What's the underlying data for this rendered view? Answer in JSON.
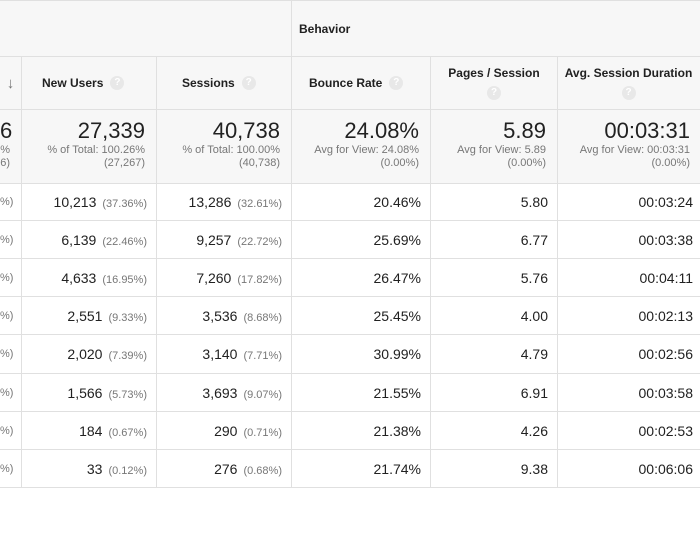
{
  "group_header": "Behavior",
  "columns": {
    "sort_arrow": "↓",
    "new_users": "New Users",
    "sessions": "Sessions",
    "bounce_rate": "Bounce Rate",
    "pages_session": "Pages / Session",
    "avg_duration": "Avg. Session Duration",
    "help": "?"
  },
  "totals": {
    "edge_big": "6",
    "edge_sub1": "%",
    "edge_sub2": "6)",
    "new_users": {
      "value": "27,339",
      "line1": "% of Total: 100.26%",
      "line2": "(27,267)"
    },
    "sessions": {
      "value": "40,738",
      "line1": "% of Total: 100.00%",
      "line2": "(40,738)"
    },
    "bounce_rate": {
      "value": "24.08%",
      "line1": "Avg for View: 24.08%",
      "line2": "(0.00%)"
    },
    "pages_session": {
      "value": "5.89",
      "line1": "Avg for View: 5.89",
      "line2": "(0.00%)"
    },
    "avg_duration": {
      "value": "00:03:31",
      "line1": "Avg for View: 00:03:31",
      "line2": "(0.00%)"
    }
  },
  "rows": [
    {
      "edge": "%)",
      "new_users": "10,213",
      "new_users_pct": "(37.36%)",
      "sessions": "13,286",
      "sessions_pct": "(32.61%)",
      "bounce": "20.46%",
      "pages": "5.80",
      "duration": "00:03:24"
    },
    {
      "edge": "%)",
      "new_users": "6,139",
      "new_users_pct": "(22.46%)",
      "sessions": "9,257",
      "sessions_pct": "(22.72%)",
      "bounce": "25.69%",
      "pages": "6.77",
      "duration": "00:03:38"
    },
    {
      "edge": "%)",
      "new_users": "4,633",
      "new_users_pct": "(16.95%)",
      "sessions": "7,260",
      "sessions_pct": "(17.82%)",
      "bounce": "26.47%",
      "pages": "5.76",
      "duration": "00:04:11"
    },
    {
      "edge": "%)",
      "new_users": "2,551",
      "new_users_pct": "(9.33%)",
      "sessions": "3,536",
      "sessions_pct": "(8.68%)",
      "bounce": "25.45%",
      "pages": "4.00",
      "duration": "00:02:13"
    },
    {
      "edge": "%)",
      "new_users": "2,020",
      "new_users_pct": "(7.39%)",
      "sessions": "3,140",
      "sessions_pct": "(7.71%)",
      "bounce": "30.99%",
      "pages": "4.79",
      "duration": "00:02:56"
    },
    {
      "edge": "%)",
      "new_users": "1,566",
      "new_users_pct": "(5.73%)",
      "sessions": "3,693",
      "sessions_pct": "(9.07%)",
      "bounce": "21.55%",
      "pages": "6.91",
      "duration": "00:03:58"
    },
    {
      "edge": "%)",
      "new_users": "184",
      "new_users_pct": "(0.67%)",
      "sessions": "290",
      "sessions_pct": "(0.71%)",
      "bounce": "21.38%",
      "pages": "4.26",
      "duration": "00:02:53"
    },
    {
      "edge": "%)",
      "new_users": "33",
      "new_users_pct": "(0.12%)",
      "sessions": "276",
      "sessions_pct": "(0.68%)",
      "bounce": "21.74%",
      "pages": "9.38",
      "duration": "00:06:06"
    }
  ]
}
